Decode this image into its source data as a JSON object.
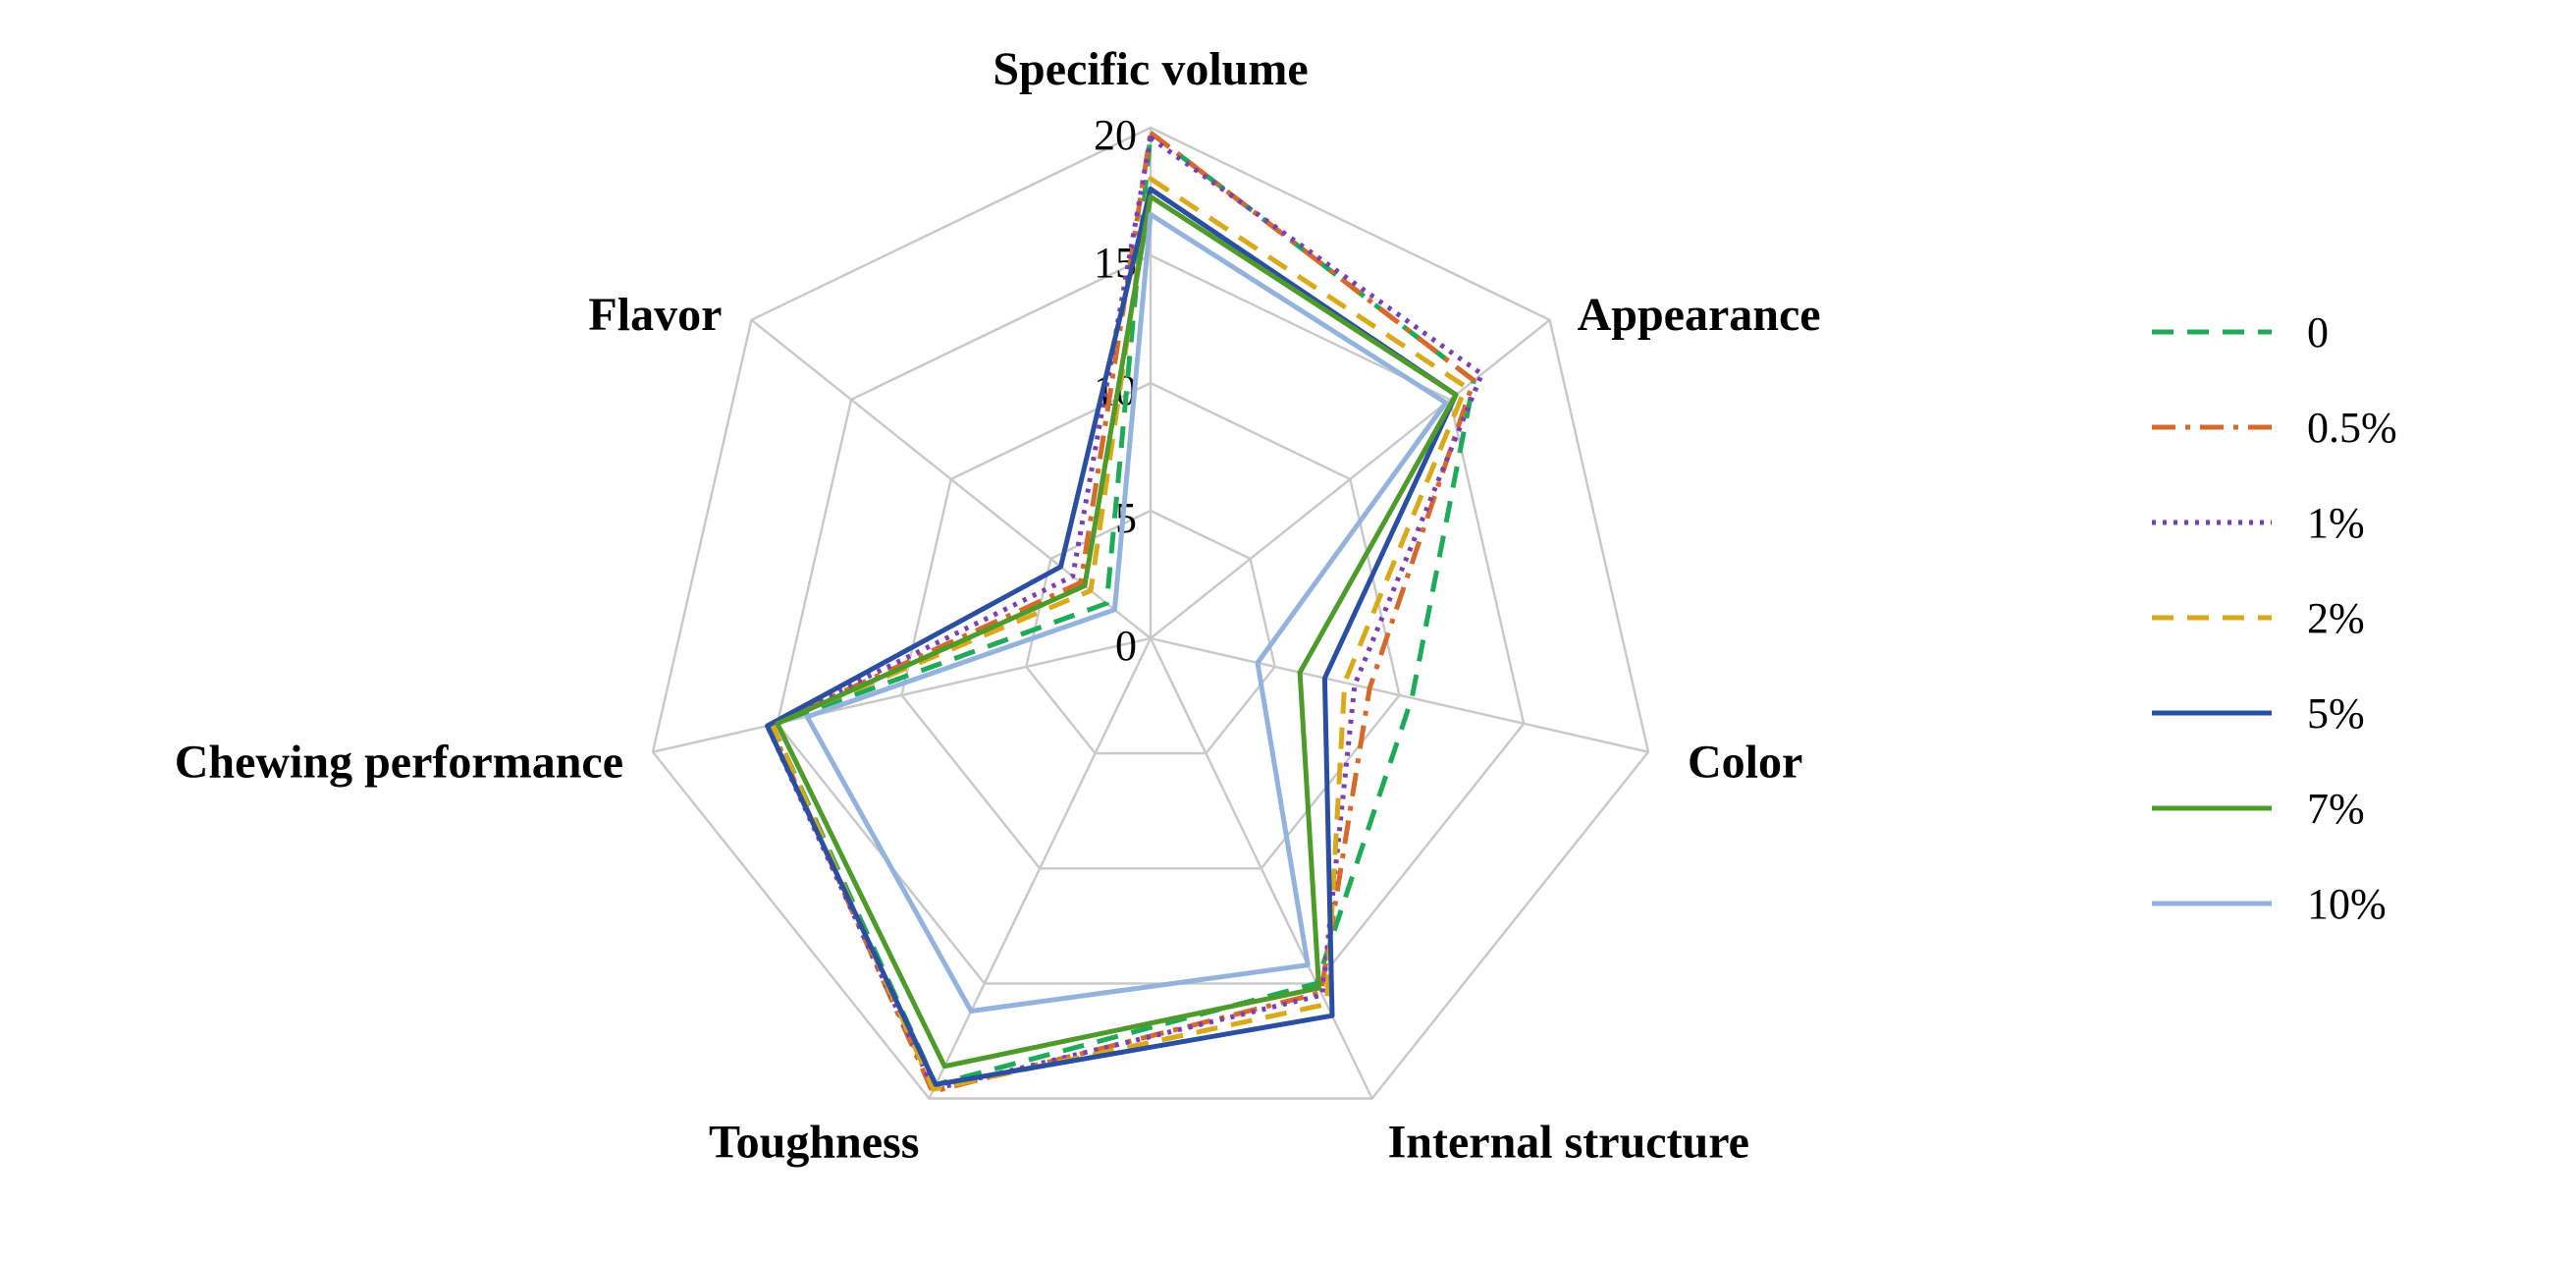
{
  "chart_data": {
    "type": "radar",
    "title": "",
    "axes": [
      "Specific volume",
      "Appearance",
      "Color",
      "Internal structure",
      "Toughness",
      "Chewing performance",
      "Flavor"
    ],
    "r_range": [
      0,
      20
    ],
    "ticks": [
      "0",
      "5",
      "10",
      "15",
      "20"
    ],
    "tick_values": [
      0,
      5,
      10,
      15,
      20
    ],
    "grid": true,
    "legend_position": "right",
    "series": [
      {
        "name": "0",
        "color": "#1faa5a",
        "dash": "dashed",
        "values": [
          19.8,
          16.2,
          10.5,
          15.0,
          19.4,
          15.2,
          2.2
        ]
      },
      {
        "name": "0.5%",
        "color": "#d66a2c",
        "dash": "dashdot",
        "values": [
          19.8,
          16.2,
          8.8,
          15.4,
          19.7,
          15.3,
          3.5
        ]
      },
      {
        "name": "1%",
        "color": "#7a3fb5",
        "dash": "dotted",
        "values": [
          19.6,
          16.6,
          8.2,
          15.5,
          19.6,
          15.4,
          3.9
        ]
      },
      {
        "name": "2%",
        "color": "#d8a91a",
        "dash": "dashed",
        "values": [
          18.0,
          15.8,
          7.8,
          15.9,
          19.6,
          15.2,
          3.0
        ]
      },
      {
        "name": "5%",
        "color": "#2b4fa0",
        "dash": "solid",
        "values": [
          17.6,
          15.3,
          7.0,
          16.4,
          19.4,
          15.4,
          4.5
        ]
      },
      {
        "name": "7%",
        "color": "#4e9a2b",
        "dash": "solid",
        "values": [
          17.3,
          15.3,
          6.0,
          15.2,
          18.6,
          15.0,
          3.3
        ]
      },
      {
        "name": "10%",
        "color": "#93b3dd",
        "dash": "solid",
        "values": [
          16.6,
          14.8,
          4.3,
          14.2,
          16.2,
          13.8,
          1.8
        ]
      }
    ]
  }
}
